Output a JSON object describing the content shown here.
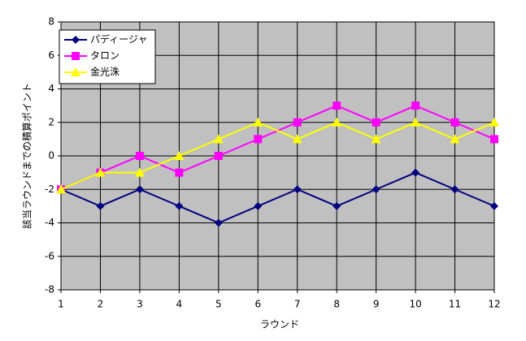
{
  "chart_data": {
    "type": "line",
    "xlabel": "ラウンド",
    "ylabel": "該当ラウンドまでの積算ポイント",
    "x": [
      1,
      2,
      3,
      4,
      5,
      6,
      7,
      8,
      9,
      10,
      11,
      12
    ],
    "xlim": [
      1,
      12
    ],
    "xticks": [
      1,
      2,
      3,
      4,
      5,
      6,
      7,
      8,
      9,
      10,
      11,
      12
    ],
    "ylim": [
      -8,
      8
    ],
    "yticks": [
      -8,
      -6,
      -4,
      -2,
      0,
      2,
      4,
      6,
      8
    ],
    "grid": true,
    "legend": "upper left",
    "series": [
      {
        "name": "パディージャ",
        "color": "#000080",
        "marker": "diamond",
        "values": [
          -2,
          -3,
          -2,
          -3,
          -4,
          -3,
          -2,
          -3,
          -2,
          -1,
          -2,
          -3
        ]
      },
      {
        "name": "タロン",
        "color": "#ff00ff",
        "marker": "square",
        "values": [
          -2,
          -1,
          0,
          -1,
          0,
          1,
          2,
          3,
          2,
          3,
          2,
          1
        ]
      },
      {
        "name": "金光洙",
        "color": "#ffff00",
        "marker": "triangle",
        "values": [
          -2,
          -1,
          -1,
          0,
          1,
          2,
          1,
          2,
          1,
          2,
          1,
          2
        ]
      }
    ]
  }
}
